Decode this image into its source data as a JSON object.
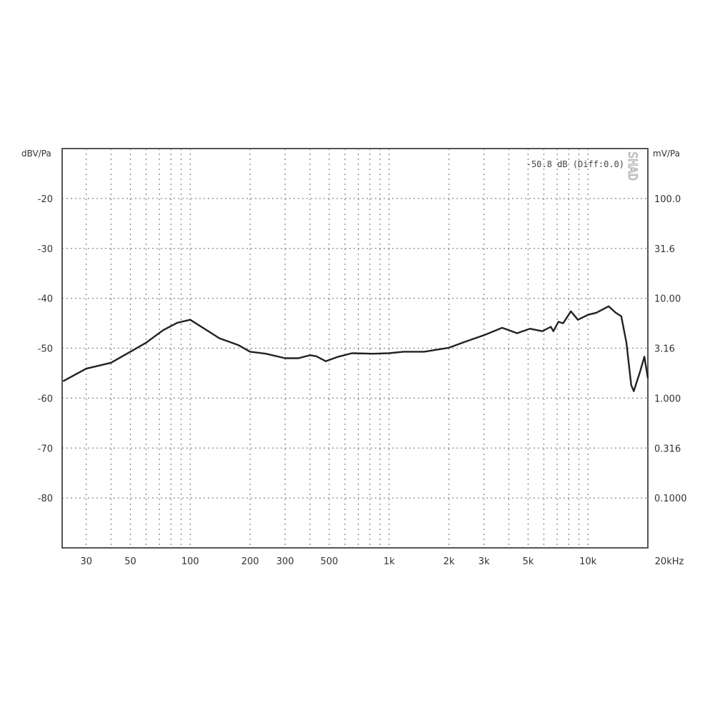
{
  "chart_data": {
    "type": "line",
    "title": "",
    "xlabel": "",
    "ylabel": "dBV/Pa",
    "ylabel_right": "mV/Pa",
    "x_scale": "log",
    "xlim": [
      22.7,
      20000
    ],
    "ylim": [
      -90,
      -10
    ],
    "grid": true,
    "x_ticks": [
      {
        "value": 30,
        "label": "30"
      },
      {
        "value": 50,
        "label": "50"
      },
      {
        "value": 100,
        "label": "100"
      },
      {
        "value": 200,
        "label": "200"
      },
      {
        "value": 300,
        "label": "300"
      },
      {
        "value": 500,
        "label": "500"
      },
      {
        "value": 1000,
        "label": "1k"
      },
      {
        "value": 2000,
        "label": "2k"
      },
      {
        "value": 3000,
        "label": "3k"
      },
      {
        "value": 5000,
        "label": "5k"
      },
      {
        "value": 10000,
        "label": "10k"
      },
      {
        "value": 20000,
        "label": "20kHz"
      }
    ],
    "y_ticks": [
      {
        "value": -20,
        "label": "-20",
        "right": "100.0"
      },
      {
        "value": -30,
        "label": "-30",
        "right": "31.6"
      },
      {
        "value": -40,
        "label": "-40",
        "right": "10.00"
      },
      {
        "value": -50,
        "label": "-50",
        "right": "3.16"
      },
      {
        "value": -60,
        "label": "-60",
        "right": "1.000"
      },
      {
        "value": -70,
        "label": "-70",
        "right": "0.316"
      },
      {
        "value": -80,
        "label": "-80",
        "right": "0.1000"
      }
    ],
    "annotation": "-50.8 dB (Diff:0.0)",
    "watermark": "SHAD",
    "line_color": "#222222",
    "series": [
      {
        "x": [
          23,
          30,
          40,
          50,
          60,
          73,
          86,
          100,
          120,
          140,
          175,
          200,
          240,
          300,
          350,
          400,
          430,
          480,
          555,
          650,
          830,
          1000,
          1180,
          1500,
          2000,
          2450,
          3000,
          3700,
          4400,
          5100,
          5900,
          6500,
          6700,
          7100,
          7500,
          8200,
          8900,
          10000,
          11000,
          12700,
          13800,
          14700,
          15600,
          16500,
          17000,
          18300,
          19200,
          20000
        ],
        "y": [
          -56.6,
          -54.1,
          -52.9,
          -50.7,
          -48.9,
          -46.4,
          -44.9,
          -44.3,
          -46.3,
          -48,
          -49.4,
          -50.7,
          -51.1,
          -52,
          -52,
          -51.4,
          -51.6,
          -52.6,
          -51.7,
          -51,
          -51.1,
          -51,
          -50.7,
          -50.7,
          -49.9,
          -48.6,
          -47.4,
          -45.9,
          -47,
          -46.1,
          -46.6,
          -45.7,
          -46.6,
          -44.7,
          -45,
          -42.6,
          -44.3,
          -43.3,
          -42.9,
          -41.6,
          -42.9,
          -43.6,
          -48.9,
          -57.4,
          -58.6,
          -54.6,
          -51.7,
          -56
        ]
      }
    ]
  }
}
